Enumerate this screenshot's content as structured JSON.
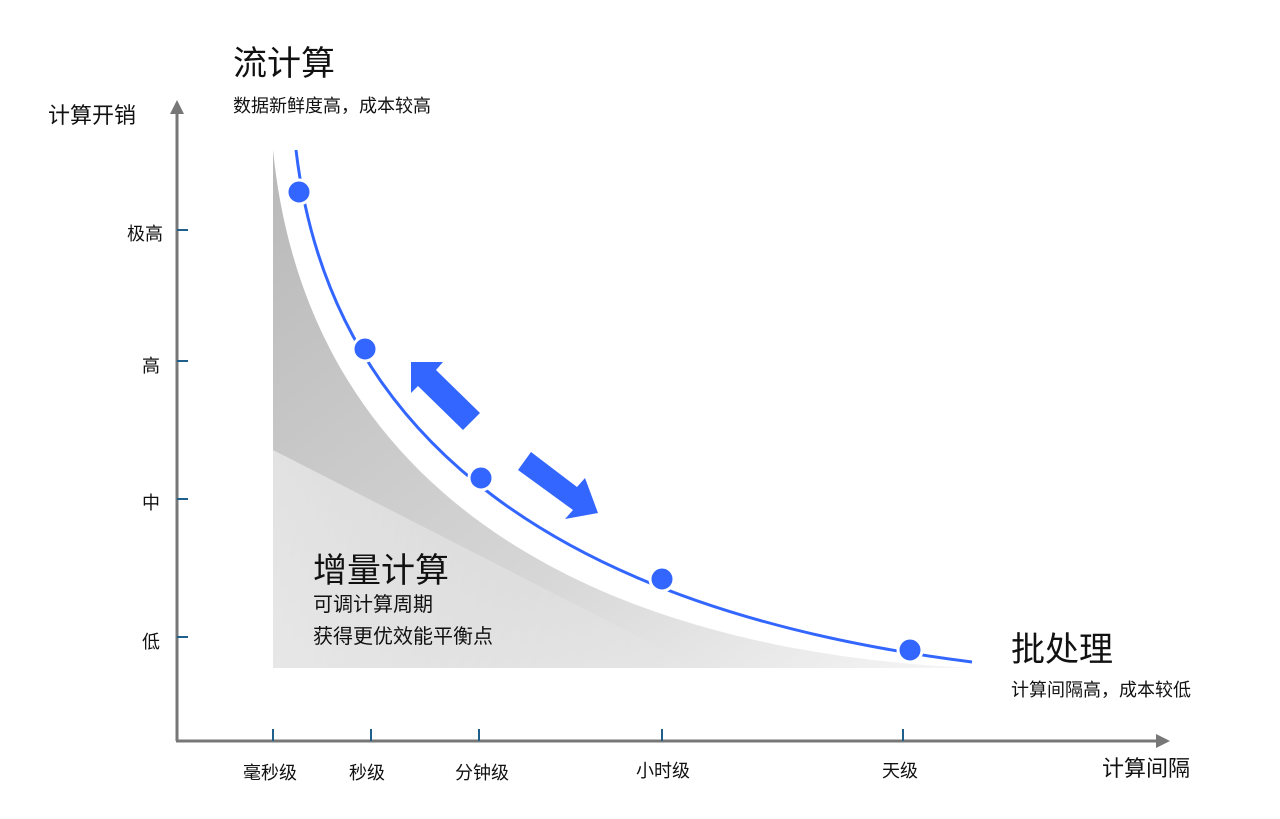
{
  "y_axis": {
    "label": "计算开销",
    "ticks": [
      "极高",
      "高",
      "中",
      "低"
    ]
  },
  "x_axis": {
    "label": "计算间隔",
    "ticks": [
      "毫秒级",
      "秒级",
      "分钟级",
      "小时级",
      "天级"
    ]
  },
  "stream": {
    "title": "流计算",
    "desc": "数据新鲜度高，成本较高"
  },
  "incremental": {
    "title": "增量计算",
    "line1": "可调计算周期",
    "line2": "获得更优效能平衡点"
  },
  "batch": {
    "title": "批处理",
    "desc": "计算间隔高，成本较低"
  },
  "colors": {
    "curve": "#3366ff",
    "axis": "#777777",
    "tick": "#1f5f8b"
  }
}
